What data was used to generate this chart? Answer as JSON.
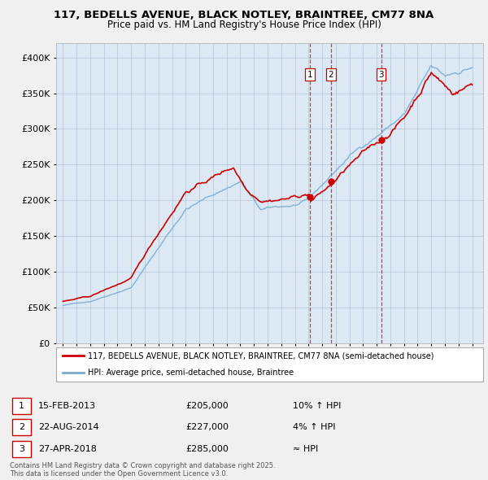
{
  "title_line1": "117, BEDELLS AVENUE, BLACK NOTLEY, BRAINTREE, CM77 8NA",
  "title_line2": "Price paid vs. HM Land Registry's House Price Index (HPI)",
  "legend_label1": "117, BEDELLS AVENUE, BLACK NOTLEY, BRAINTREE, CM77 8NA (semi-detached house)",
  "legend_label2": "HPI: Average price, semi-detached house, Braintree",
  "sale_color": "#cc0000",
  "hpi_color": "#7aaad0",
  "background_color": "#f0f0f0",
  "plot_bg_color": "#dce9f5",
  "grid_color": "#b0c4d8",
  "transactions": [
    {
      "label": "1",
      "date": 2013.12,
      "price": 205000
    },
    {
      "label": "2",
      "date": 2014.64,
      "price": 227000
    },
    {
      "label": "3",
      "date": 2018.32,
      "price": 285000
    }
  ],
  "transaction_table": [
    [
      "1",
      "15-FEB-2013",
      "£205,000",
      "10% ↑ HPI"
    ],
    [
      "2",
      "22-AUG-2014",
      "£227,000",
      "4% ↑ HPI"
    ],
    [
      "3",
      "27-APR-2018",
      "£285,000",
      "≈ HPI"
    ]
  ],
  "footer": "Contains HM Land Registry data © Crown copyright and database right 2025.\nThis data is licensed under the Open Government Licence v3.0.",
  "ylim": [
    0,
    420000
  ],
  "yticks": [
    0,
    50000,
    100000,
    150000,
    200000,
    250000,
    300000,
    350000,
    400000
  ],
  "xlim": [
    1994.5,
    2025.8
  ]
}
